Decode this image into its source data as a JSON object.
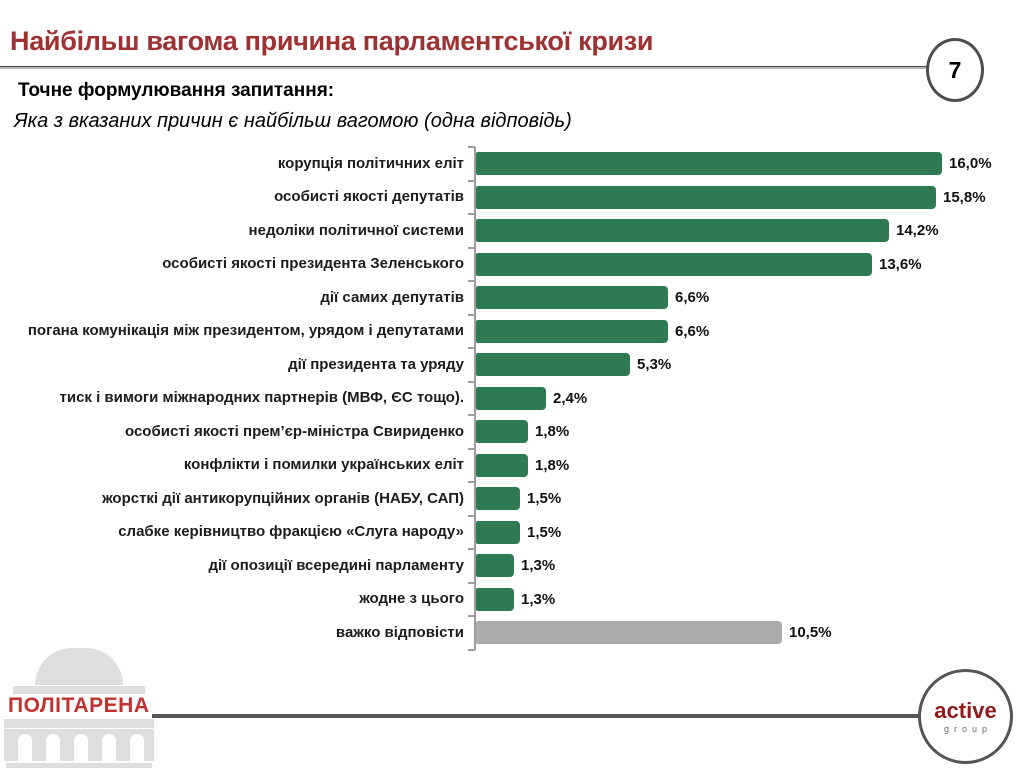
{
  "header": {
    "title": "Найбільш вагома причина парламентської кризи",
    "page_number": "7"
  },
  "question": {
    "heading": "Точне формулювання запитання:",
    "wording": "Яка з вказаних причин є найбільш вагомою (одна відповідь)"
  },
  "chart_data": {
    "type": "bar",
    "orientation": "horizontal",
    "title": "",
    "xlabel": "",
    "ylabel": "",
    "xlim": [
      0,
      16.5
    ],
    "grid": false,
    "legend": false,
    "categories": [
      "корупція політичних еліт",
      "особисті якості депутатів",
      "недоліки політичної системи",
      "особисті якості президента Зеленського",
      "дії самих депутатів",
      "погана комунікація між президентом, урядом і депутатами",
      "дії президента та уряду",
      "тиск і вимоги міжнародних партнерів (МВФ, ЄС тощо).",
      "особисті якості прем’єр-міністра Свириденко",
      "конфлікти і помилки українських еліт",
      "жорсткі дії антикорупційних органів (НАБУ, САП)",
      "слабке керівництво фракцією «Слуга народу»",
      "дії опозиції всередині парламенту",
      "жодне з цього",
      "важко відповісти"
    ],
    "values": [
      16.0,
      15.8,
      14.2,
      13.6,
      6.6,
      6.6,
      5.3,
      2.4,
      1.8,
      1.8,
      1.5,
      1.5,
      1.3,
      1.3,
      10.5
    ],
    "display_values": [
      "16,0%",
      "15,8%",
      "14,2%",
      "13,6%",
      "6,6%",
      "6,6%",
      "5,3%",
      "2,4%",
      "1,8%",
      "1,8%",
      "1,5%",
      "1,5%",
      "1,3%",
      "1,3%",
      "10,5%"
    ],
    "bar_colors": [
      "#2E7B52",
      "#2E7B52",
      "#2E7B52",
      "#2E7B52",
      "#2E7B52",
      "#2E7B52",
      "#2E7B52",
      "#2E7B52",
      "#2E7B52",
      "#2E7B52",
      "#2E7B52",
      "#2E7B52",
      "#2E7B52",
      "#2E7B52",
      "#ABABAB"
    ]
  },
  "footer": {
    "politarena_label": "ПОЛІТАРЕНА",
    "active_logo": {
      "line1": "active",
      "line2": "group"
    }
  },
  "colors": {
    "title_red": "#9E3132",
    "bar_green": "#2E7B52",
    "bar_gray": "#ABABAB",
    "politarena_red": "#C0322F",
    "active_red": "#8E1B1A",
    "rule_gray": "#4a4a4a"
  }
}
